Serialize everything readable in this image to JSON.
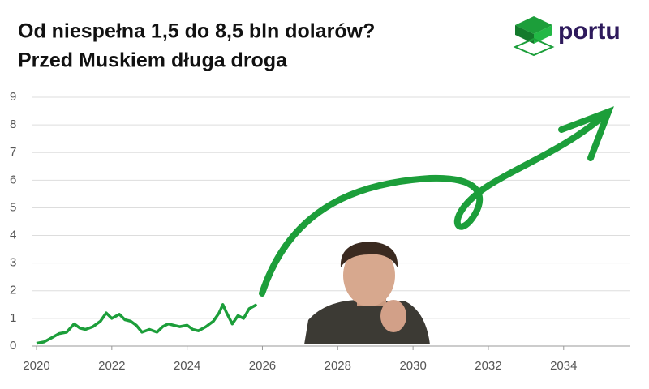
{
  "chart_data": {
    "type": "line",
    "title_lines": [
      "Od niespełna 1,5 do 8,5 bln dolarów?",
      "Przed Muskiem długa droga"
    ],
    "logo": "portu",
    "x": [
      2020.0,
      2020.2,
      2020.4,
      2020.6,
      2020.8,
      2021.0,
      2021.15,
      2021.3,
      2021.5,
      2021.7,
      2021.85,
      2022.0,
      2022.2,
      2022.35,
      2022.5,
      2022.65,
      2022.8,
      2023.0,
      2023.2,
      2023.35,
      2023.5,
      2023.65,
      2023.8,
      2024.0,
      2024.15,
      2024.3,
      2024.5,
      2024.7,
      2024.85,
      2024.95,
      2025.05,
      2025.2,
      2025.35,
      2025.5,
      2025.65,
      2025.85
    ],
    "values": [
      0.1,
      0.15,
      0.3,
      0.45,
      0.5,
      0.8,
      0.65,
      0.6,
      0.7,
      0.9,
      1.2,
      1.0,
      1.15,
      0.95,
      0.9,
      0.75,
      0.5,
      0.6,
      0.5,
      0.7,
      0.8,
      0.75,
      0.7,
      0.75,
      0.6,
      0.55,
      0.7,
      0.9,
      1.2,
      1.5,
      1.2,
      0.8,
      1.1,
      1.0,
      1.35,
      1.5
    ],
    "color": "#1c9e3a",
    "xlim": [
      2020,
      2035.75
    ],
    "xticks": [
      2020,
      2022,
      2024,
      2026,
      2028,
      2030,
      2032,
      2034
    ],
    "ylim": [
      0,
      9
    ],
    "yticks": [
      0,
      1,
      2,
      3,
      4,
      5,
      6,
      7,
      8,
      9
    ],
    "grid": true
  }
}
